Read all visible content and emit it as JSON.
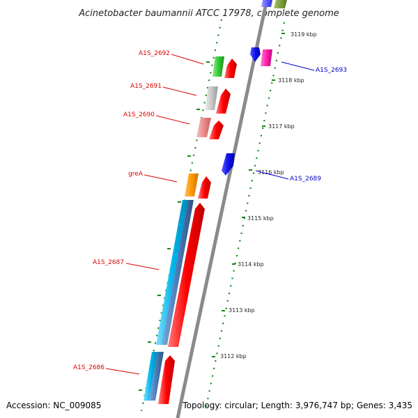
{
  "title": "Acinetobacter baumannii ATCC 17978, complete genome",
  "footer": {
    "accession": "Accession: NC_009085",
    "topology": "Topology: circular; Length: 3,976,747 bp; Genes: 3,435"
  },
  "colors": {
    "backbone": "#8a8a8a",
    "forward_label": "#dd0000",
    "reverse_label": "#0000cc",
    "tick_dots": "#118811",
    "cds_forward": "#ff0000",
    "cds_reverse": "#0000ee"
  },
  "ticks": [
    "3119 kbp",
    "3118 kbp",
    "3117 kbp",
    "3116 kbp",
    "3115 kbp",
    "3114 kbp",
    "3113 kbp",
    "3112 kbp"
  ],
  "gene_labels": [
    {
      "text": "A1S_2692",
      "strand": "forward"
    },
    {
      "text": "A1S_2691",
      "strand": "forward"
    },
    {
      "text": "A1S_2690",
      "strand": "forward"
    },
    {
      "text": "greA",
      "strand": "forward"
    },
    {
      "text": "A1S_2687",
      "strand": "forward"
    },
    {
      "text": "A1S_2686",
      "strand": "forward"
    },
    {
      "text": "A1S_2693",
      "strand": "reverse"
    },
    {
      "text": "A1S_2689",
      "strand": "reverse"
    }
  ]
}
